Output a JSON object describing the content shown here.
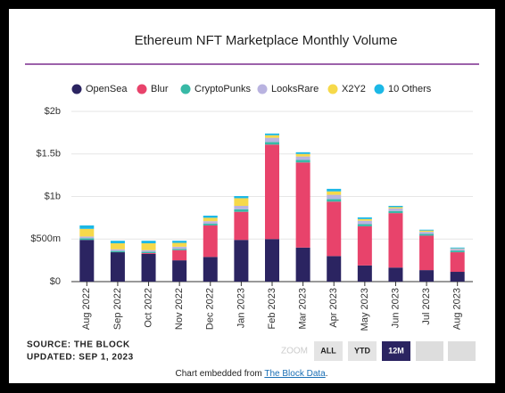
{
  "chart_data": {
    "type": "stacked_bar",
    "title": "Ethereum NFT Marketplace Monthly Volume",
    "categories": [
      "Aug 2022",
      "Sep 2022",
      "Oct 2022",
      "Nov 2022",
      "Dec 2022",
      "Jan 2023",
      "Feb 2023",
      "Mar 2023",
      "Apr 2023",
      "May 2023",
      "Jun 2023",
      "Jul 2023",
      "Aug 2023"
    ],
    "series": [
      {
        "name": "OpenSea",
        "color": "#2b2461",
        "values": [
          490,
          345,
          325,
          250,
          290,
          490,
          500,
          400,
          300,
          190,
          165,
          135,
          115
        ]
      },
      {
        "name": "Blur",
        "color": "#e8436b",
        "values": [
          0,
          0,
          10,
          120,
          370,
          330,
          1110,
          1000,
          640,
          460,
          640,
          405,
          230
        ]
      },
      {
        "name": "CryptoPunks",
        "color": "#38b9a6",
        "values": [
          20,
          15,
          15,
          15,
          20,
          30,
          30,
          30,
          30,
          25,
          25,
          20,
          20
        ]
      },
      {
        "name": "LooksRare",
        "color": "#b9b3e0",
        "values": [
          20,
          20,
          20,
          25,
          30,
          40,
          50,
          40,
          50,
          40,
          30,
          25,
          20
        ]
      },
      {
        "name": "X2Y2",
        "color": "#f6d94a",
        "values": [
          90,
          70,
          80,
          45,
          40,
          90,
          30,
          30,
          40,
          20,
          15,
          15,
          5
        ]
      },
      {
        "name": "10 Others",
        "color": "#1cb8e6",
        "values": [
          40,
          30,
          30,
          25,
          25,
          25,
          20,
          20,
          30,
          20,
          15,
          10,
          10
        ]
      }
    ],
    "ylim": [
      0,
      2000
    ],
    "yticks": [
      {
        "value": 0,
        "label": "$0"
      },
      {
        "value": 500,
        "label": "$500m"
      },
      {
        "value": 1000,
        "label": "$1b"
      },
      {
        "value": 1500,
        "label": "$1.5b"
      },
      {
        "value": 2000,
        "label": "$2b"
      }
    ],
    "grid": true,
    "legend": "top"
  },
  "source": "SOURCE: THE BLOCK",
  "updated": "UPDATED: SEP 1, 2023",
  "zoom": {
    "label": "ZOOM",
    "buttons": [
      "ALL",
      "YTD",
      "12M"
    ],
    "active": "12M"
  },
  "footer": {
    "text": "Chart embedded from ",
    "link": "The Block Data",
    "end": "."
  }
}
